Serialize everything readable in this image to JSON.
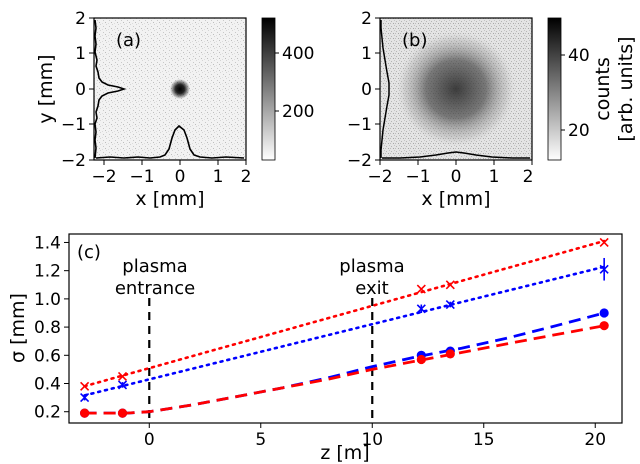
{
  "chart_data": [
    {
      "panel_label": "(a)",
      "type": "heatmap",
      "xlabel": "x [mm]",
      "ylabel": "y [mm]",
      "xlim": [
        -2,
        2
      ],
      "ylim": [
        -2,
        2
      ],
      "xticks": [
        "−2",
        "−1",
        "0",
        "1",
        "2"
      ],
      "yticks": [
        "−2",
        "−1",
        "0",
        "1",
        "2"
      ],
      "spot": {
        "center_x": 0,
        "center_y": 0,
        "sigma_mm": 0.19
      },
      "colorbar": {
        "ticks": [
          200,
          400
        ],
        "range": [
          30,
          520
        ],
        "label": ""
      },
      "profiles": [
        "horizontal",
        "vertical"
      ]
    },
    {
      "panel_label": "(b)",
      "type": "heatmap",
      "xlabel": "x [mm]",
      "ylabel": "",
      "xlim": [
        -2,
        2
      ],
      "ylim": [
        -2,
        2
      ],
      "xticks": [
        "−2",
        "−1",
        "0",
        "1",
        "2"
      ],
      "yticks": [
        "−2",
        "−1",
        "0",
        "1",
        "2"
      ],
      "spot": {
        "center_x": 0,
        "center_y": 0,
        "sigma_mm": 0.85
      },
      "colorbar": {
        "ticks": [
          20,
          40
        ],
        "range": [
          12,
          50
        ],
        "label_line1": "counts",
        "label_line2": "[arb. units]"
      },
      "profiles": [
        "horizontal",
        "vertical"
      ]
    },
    {
      "panel_label": "(c)",
      "type": "line",
      "xlabel": "z [m]",
      "ylabel": "σ [mm]",
      "xlim": [
        -3.6,
        21.2
      ],
      "ylim": [
        0.12,
        1.46
      ],
      "xticks": [
        0,
        5,
        10,
        15,
        20
      ],
      "yticks": [
        0.2,
        0.4,
        0.6,
        0.8,
        1.0,
        1.2,
        1.4
      ],
      "grid": false,
      "annotations": [
        {
          "lines": [
            "plasma",
            "entrance"
          ],
          "z": 0
        },
        {
          "lines": [
            "plasma",
            "exit"
          ],
          "z": 10
        }
      ],
      "series": [
        {
          "color": "#ff0000",
          "marker": "x",
          "line": "dotted",
          "x": [
            -2.9,
            -1.2,
            12.2,
            13.5,
            20.4
          ],
          "y": [
            0.38,
            0.45,
            1.07,
            1.1,
            1.4
          ]
        },
        {
          "color": "#0000ff",
          "marker": "x",
          "line": "dotted",
          "x": [
            -2.9,
            -1.2,
            12.2,
            13.5,
            20.4
          ],
          "y": [
            0.3,
            0.39,
            0.93,
            0.96,
            1.21
          ],
          "yerr": [
            0.02,
            0.02,
            0.03,
            0.02,
            0.08
          ]
        },
        {
          "color": "#0000ff",
          "marker": "o",
          "line": "dashed",
          "x": [
            -2.9,
            -1.2,
            12.2,
            13.5,
            20.4
          ],
          "y": [
            0.19,
            0.19,
            0.6,
            0.63,
            0.9
          ],
          "fit": [
            [
              -2.9,
              0.19
            ],
            [
              -1,
              0.19
            ],
            [
              0,
              0.2
            ],
            [
              2,
              0.25
            ],
            [
              4,
              0.31
            ],
            [
              6,
              0.37
            ],
            [
              8,
              0.44
            ],
            [
              10,
              0.52
            ],
            [
              12,
              0.59
            ],
            [
              14,
              0.65
            ],
            [
              16,
              0.72
            ],
            [
              18,
              0.8
            ],
            [
              20.4,
              0.9
            ]
          ]
        },
        {
          "color": "#ff0000",
          "marker": "o",
          "line": "dashed",
          "x": [
            -2.9,
            -1.2,
            12.2,
            13.5,
            20.4
          ],
          "y": [
            0.19,
            0.19,
            0.57,
            0.61,
            0.81
          ],
          "fit": [
            [
              -2.9,
              0.19
            ],
            [
              -1,
              0.19
            ],
            [
              0,
              0.2
            ],
            [
              2,
              0.25
            ],
            [
              4,
              0.31
            ],
            [
              6,
              0.37
            ],
            [
              8,
              0.43
            ],
            [
              10,
              0.5
            ],
            [
              12,
              0.56
            ],
            [
              14,
              0.62
            ],
            [
              16,
              0.68
            ],
            [
              18,
              0.74
            ],
            [
              20.4,
              0.81
            ]
          ]
        }
      ]
    }
  ]
}
